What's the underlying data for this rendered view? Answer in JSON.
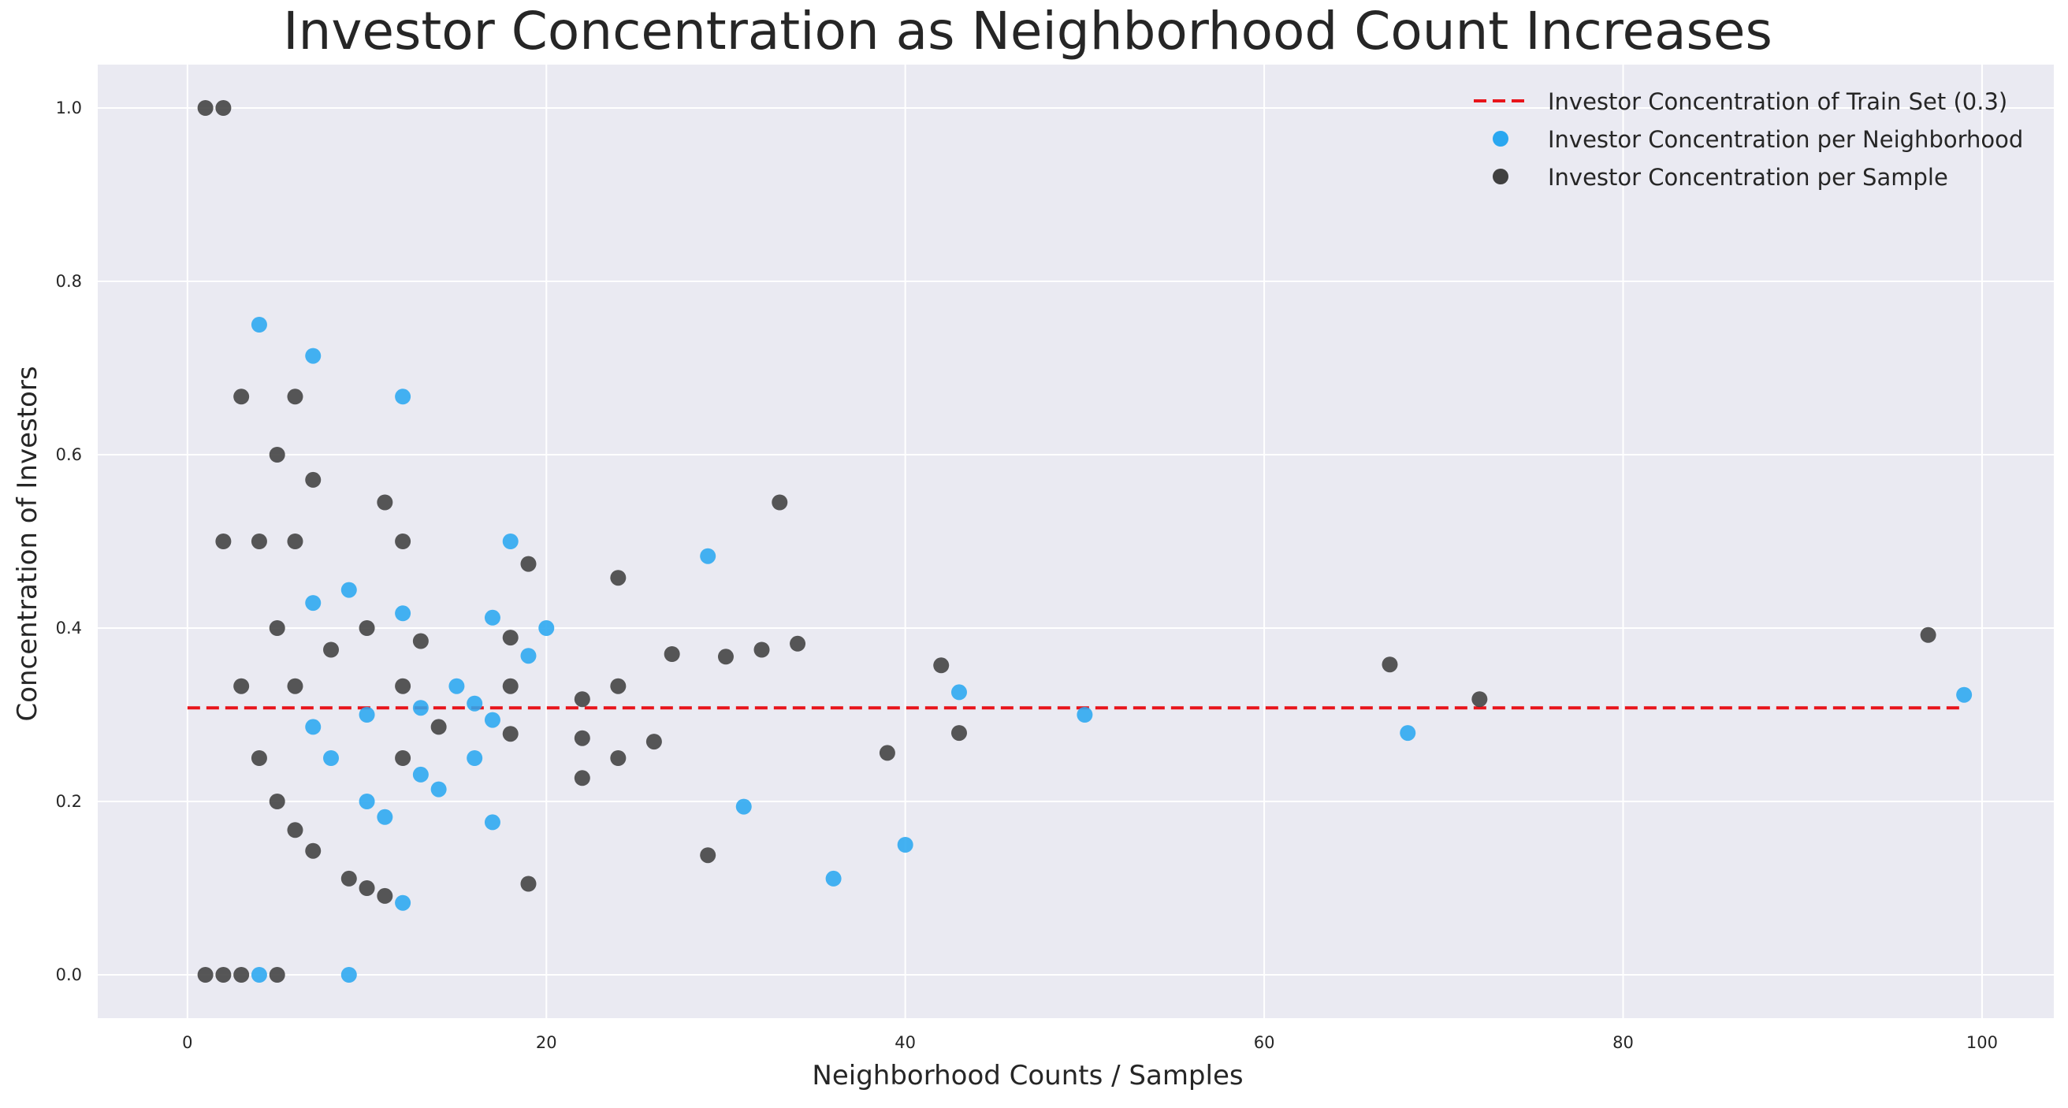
{
  "chart_data": {
    "type": "scatter",
    "title": "Investor Concentration as Neighborhood Count Increases",
    "xlabel": "Neighborhood Counts / Samples",
    "ylabel": "Concentration of Investors",
    "xlim": [
      -5,
      104
    ],
    "ylim": [
      -0.05,
      1.05
    ],
    "xticks": [
      0,
      20,
      40,
      60,
      80,
      100
    ],
    "yticks": [
      0.0,
      0.2,
      0.4,
      0.6,
      0.8,
      1.0
    ],
    "xtick_labels": [
      "0",
      "20",
      "40",
      "60",
      "80",
      "100"
    ],
    "ytick_labels": [
      "0.0",
      "0.2",
      "0.4",
      "0.6",
      "0.8",
      "1.0"
    ],
    "grid": true,
    "legend_position": "top-right",
    "reference_line": {
      "name": "Investor Concentration of Train Set (0.3)",
      "y": 0.308,
      "x_range": [
        0,
        99
      ],
      "color": "#e8141b",
      "style": "dashed"
    },
    "series": [
      {
        "name": "Investor Concentration per Neighborhood",
        "color": "#2aa7f0",
        "points": [
          [
            4,
            0.75
          ],
          [
            7,
            0.714
          ],
          [
            12,
            0.667
          ],
          [
            18,
            0.5
          ],
          [
            29,
            0.483
          ],
          [
            9,
            0.444
          ],
          [
            7,
            0.429
          ],
          [
            12,
            0.417
          ],
          [
            17,
            0.412
          ],
          [
            20,
            0.4
          ],
          [
            19,
            0.368
          ],
          [
            15,
            0.333
          ],
          [
            16,
            0.313
          ],
          [
            13,
            0.308
          ],
          [
            10,
            0.3
          ],
          [
            17,
            0.294
          ],
          [
            7,
            0.286
          ],
          [
            8,
            0.25
          ],
          [
            16,
            0.25
          ],
          [
            13,
            0.231
          ],
          [
            14,
            0.214
          ],
          [
            10,
            0.2
          ],
          [
            11,
            0.182
          ],
          [
            17,
            0.176
          ],
          [
            12,
            0.083
          ],
          [
            9,
            0.0
          ],
          [
            4,
            0.0
          ],
          [
            31,
            0.194
          ],
          [
            36,
            0.111
          ],
          [
            40,
            0.15
          ],
          [
            43,
            0.326
          ],
          [
            50,
            0.3
          ],
          [
            68,
            0.279
          ],
          [
            99,
            0.323
          ]
        ]
      },
      {
        "name": "Investor Concentration per Sample",
        "color": "#404040",
        "points": [
          [
            1,
            1.0
          ],
          [
            2,
            1.0
          ],
          [
            3,
            0.667
          ],
          [
            6,
            0.667
          ],
          [
            5,
            0.6
          ],
          [
            7,
            0.571
          ],
          [
            11,
            0.545
          ],
          [
            2,
            0.5
          ],
          [
            4,
            0.5
          ],
          [
            6,
            0.5
          ],
          [
            12,
            0.5
          ],
          [
            19,
            0.474
          ],
          [
            24,
            0.458
          ],
          [
            5,
            0.4
          ],
          [
            10,
            0.4
          ],
          [
            13,
            0.385
          ],
          [
            18,
            0.389
          ],
          [
            8,
            0.375
          ],
          [
            27,
            0.37
          ],
          [
            30,
            0.367
          ],
          [
            32,
            0.375
          ],
          [
            34,
            0.382
          ],
          [
            42,
            0.357
          ],
          [
            3,
            0.333
          ],
          [
            6,
            0.333
          ],
          [
            12,
            0.333
          ],
          [
            18,
            0.333
          ],
          [
            24,
            0.333
          ],
          [
            22,
            0.318
          ],
          [
            14,
            0.286
          ],
          [
            18,
            0.278
          ],
          [
            22,
            0.273
          ],
          [
            26,
            0.269
          ],
          [
            43,
            0.279
          ],
          [
            4,
            0.25
          ],
          [
            12,
            0.25
          ],
          [
            24,
            0.25
          ],
          [
            39,
            0.256
          ],
          [
            22,
            0.227
          ],
          [
            5,
            0.2
          ],
          [
            6,
            0.167
          ],
          [
            7,
            0.143
          ],
          [
            29,
            0.138
          ],
          [
            9,
            0.111
          ],
          [
            19,
            0.105
          ],
          [
            10,
            0.1
          ],
          [
            11,
            0.091
          ],
          [
            1,
            0.0
          ],
          [
            2,
            0.0
          ],
          [
            3,
            0.0
          ],
          [
            5,
            0.0
          ],
          [
            33,
            0.545
          ],
          [
            67,
            0.358
          ],
          [
            72,
            0.318
          ],
          [
            97,
            0.392
          ]
        ]
      }
    ]
  }
}
